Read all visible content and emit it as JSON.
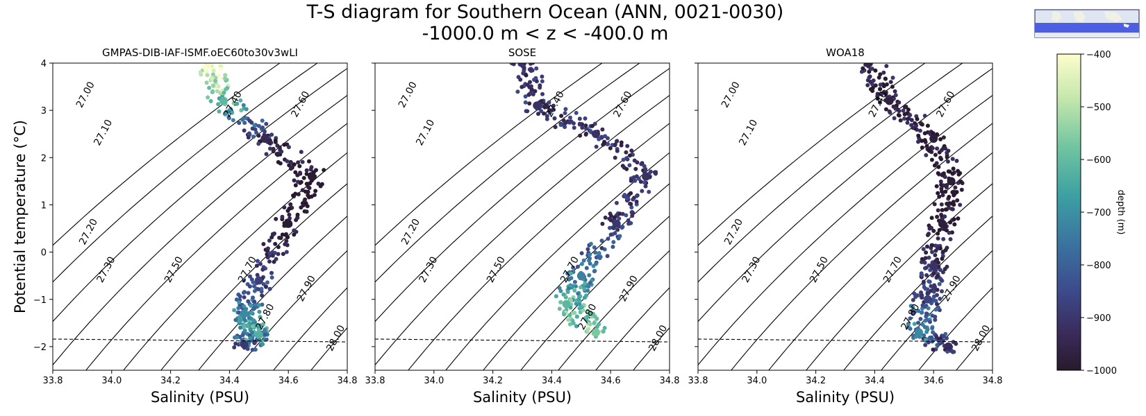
{
  "figure": {
    "title": "T-S diagram for Southern Ocean (ANN, 0021-0030)",
    "subtitle": "-1000.0 m < z < -400.0 m",
    "inset_map": "southern-ocean-region-map"
  },
  "colorbar": {
    "label": "depth (m)",
    "ticks": [
      -400,
      -500,
      -600,
      -700,
      -800,
      -900,
      -1000
    ],
    "range": [
      -1000,
      -400
    ],
    "colormap": "deep",
    "colors": [
      "#fdfdcc",
      "#c5e7ad",
      "#6ec3a0",
      "#3d9fa3",
      "#3b73a0",
      "#3d4a8c",
      "#3a2c5c",
      "#281a2c"
    ]
  },
  "chart_data": [
    {
      "type": "scatter",
      "title": "GMPAS-DIB-IAF-ISMF.oEC60to30v3wLI",
      "xlabel": "Salinity (PSU)",
      "ylabel": "Potential temperature ($^\\circ$C)",
      "xlim": [
        33.8,
        34.8
      ],
      "ylim": [
        -2.5,
        4
      ],
      "xticks": [
        "33.8",
        "34.0",
        "34.2",
        "34.4",
        "34.6",
        "34.8"
      ],
      "yticks": [
        "−2",
        "−1",
        "0",
        "1",
        "2",
        "3",
        "4"
      ],
      "freezing_line": [
        [
          33.8,
          -1.84
        ],
        [
          34.8,
          -1.9
        ]
      ],
      "density_contours": [
        "27.00",
        "27.10",
        "27.20",
        "27.30",
        "27.40",
        "27.50",
        "27.60",
        "27.70",
        "27.80",
        "27.90",
        "28.00"
      ],
      "water_mass_path": [
        {
          "S": 34.33,
          "T": 4.0,
          "z": -410
        },
        {
          "S": 34.38,
          "T": 3.2,
          "z": -600
        },
        {
          "S": 34.52,
          "T": 2.4,
          "z": -930
        },
        {
          "S": 34.68,
          "T": 1.6,
          "z": -990
        },
        {
          "S": 34.6,
          "T": 0.6,
          "z": -990
        },
        {
          "S": 34.5,
          "T": -0.6,
          "z": -860
        },
        {
          "S": 34.45,
          "T": -1.3,
          "z": -700
        },
        {
          "S": 34.5,
          "T": -1.75,
          "z": -620
        },
        {
          "S": 34.45,
          "T": -1.95,
          "z": -880
        }
      ]
    },
    {
      "type": "scatter",
      "title": "SOSE",
      "xlabel": "Salinity (PSU)",
      "ylabel": "",
      "xlim": [
        33.8,
        34.8
      ],
      "ylim": [
        -2.5,
        4
      ],
      "xticks": [
        "33.8",
        "34.0",
        "34.2",
        "34.4",
        "34.6",
        "34.8"
      ],
      "yticks": [],
      "freezing_line": [
        [
          33.8,
          -1.84
        ],
        [
          34.8,
          -1.9
        ]
      ],
      "density_contours": [
        "27.00",
        "27.10",
        "27.20",
        "27.30",
        "27.40",
        "27.50",
        "27.60",
        "27.70",
        "27.80",
        "27.90",
        "28.00"
      ],
      "water_mass_path": [
        {
          "S": 34.3,
          "T": 4.0,
          "z": -900
        },
        {
          "S": 34.35,
          "T": 3.1,
          "z": -900
        },
        {
          "S": 34.55,
          "T": 2.5,
          "z": -900
        },
        {
          "S": 34.72,
          "T": 1.6,
          "z": -900
        },
        {
          "S": 34.62,
          "T": 0.6,
          "z": -880
        },
        {
          "S": 34.5,
          "T": -0.5,
          "z": -720
        },
        {
          "S": 34.45,
          "T": -1.1,
          "z": -600
        },
        {
          "S": 34.55,
          "T": -1.7,
          "z": -560
        }
      ]
    },
    {
      "type": "scatter",
      "title": "WOA18",
      "xlabel": "Salinity (PSU)",
      "ylabel": "",
      "xlim": [
        33.8,
        34.8
      ],
      "ylim": [
        -2.5,
        4
      ],
      "xticks": [
        "33.8",
        "34.0",
        "34.2",
        "34.4",
        "34.6",
        "34.8"
      ],
      "yticks": [],
      "freezing_line": [
        [
          33.8,
          -1.84
        ],
        [
          34.8,
          -1.9
        ]
      ],
      "density_contours": [
        "27.00",
        "27.10",
        "27.20",
        "27.30",
        "27.40",
        "27.50",
        "27.60",
        "27.70",
        "27.80",
        "27.90",
        "28.00"
      ],
      "water_mass_path": [
        {
          "S": 34.38,
          "T": 4.0,
          "z": -950
        },
        {
          "S": 34.45,
          "T": 3.2,
          "z": -960
        },
        {
          "S": 34.6,
          "T": 2.4,
          "z": -970
        },
        {
          "S": 34.66,
          "T": 1.5,
          "z": -980
        },
        {
          "S": 34.63,
          "T": 0.6,
          "z": -970
        },
        {
          "S": 34.6,
          "T": -0.3,
          "z": -900
        },
        {
          "S": 34.58,
          "T": -1.0,
          "z": -850
        },
        {
          "S": 34.55,
          "T": -1.7,
          "z": -700
        },
        {
          "S": 34.65,
          "T": -2.0,
          "z": -920
        }
      ]
    }
  ]
}
